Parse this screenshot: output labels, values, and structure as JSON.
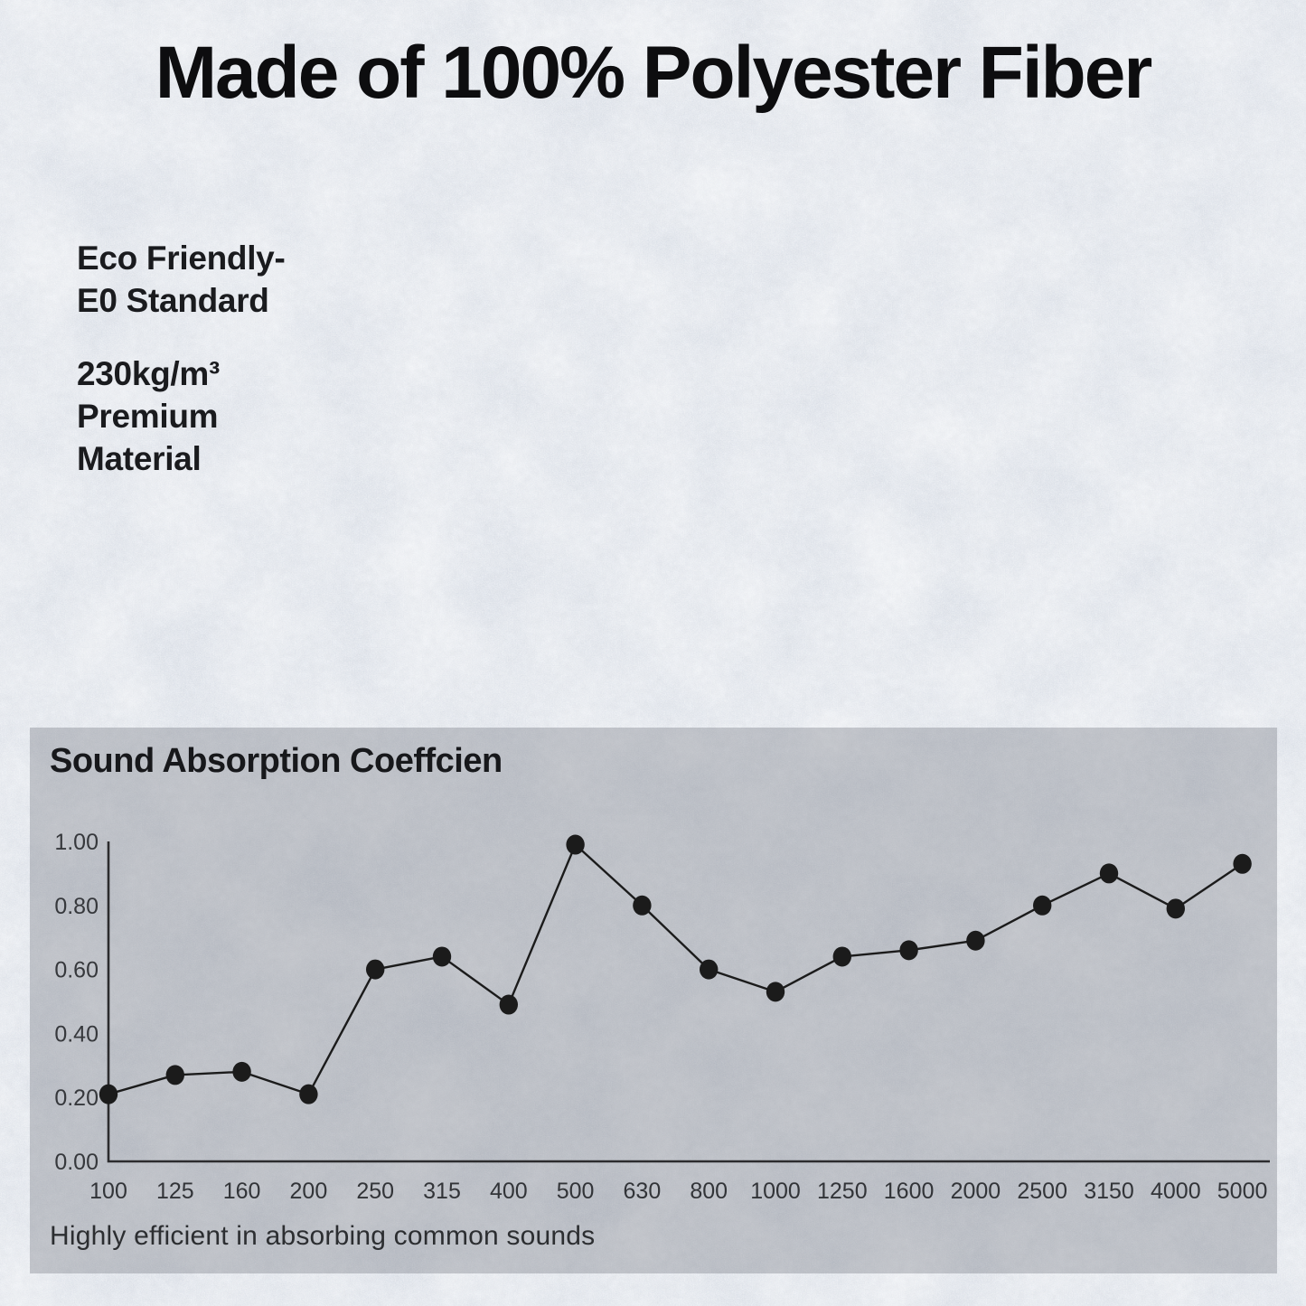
{
  "header": {
    "title": "Made of 100% Polyester Fiber"
  },
  "features": {
    "blocks": [
      {
        "lines": [
          "Eco Friendly-",
          "E0 Standard"
        ]
      },
      {
        "lines": [
          "230kg/m³",
          "Premium",
          "Material"
        ]
      }
    ]
  },
  "panel": {
    "title": "Sound Absorption Coeffcien",
    "footer": "Highly efficient in absorbing common sounds"
  },
  "chart_data": {
    "type": "line",
    "title": "Sound Absorption Coeffcien",
    "categories": [
      "100",
      "125",
      "160",
      "200",
      "250",
      "315",
      "400",
      "500",
      "630",
      "800",
      "1000",
      "1250",
      "1600",
      "2000",
      "2500",
      "3150",
      "4000",
      "5000"
    ],
    "values": [
      0.21,
      0.27,
      0.28,
      0.21,
      0.6,
      0.64,
      0.49,
      0.99,
      0.8,
      0.6,
      0.53,
      0.64,
      0.66,
      0.69,
      0.8,
      0.9,
      0.79,
      0.93
    ],
    "xlabel": "",
    "ylabel": "",
    "ylim": [
      0,
      1.0
    ],
    "yticks": [
      0.0,
      0.2,
      0.4,
      0.6,
      0.8,
      1.0
    ],
    "ytick_labels": [
      "0.00",
      "0.20",
      "0.40",
      "0.60",
      "0.80",
      "1.00"
    ],
    "grid": false,
    "legend": "none",
    "marker": "filled-circle"
  },
  "colors": {
    "background": "#dce1e9",
    "panel": "#b6bac1",
    "ink": "#0d0d0f",
    "line": "#1b1b1b",
    "axis": "#2c2c2e",
    "tick_text": "#36383c"
  }
}
